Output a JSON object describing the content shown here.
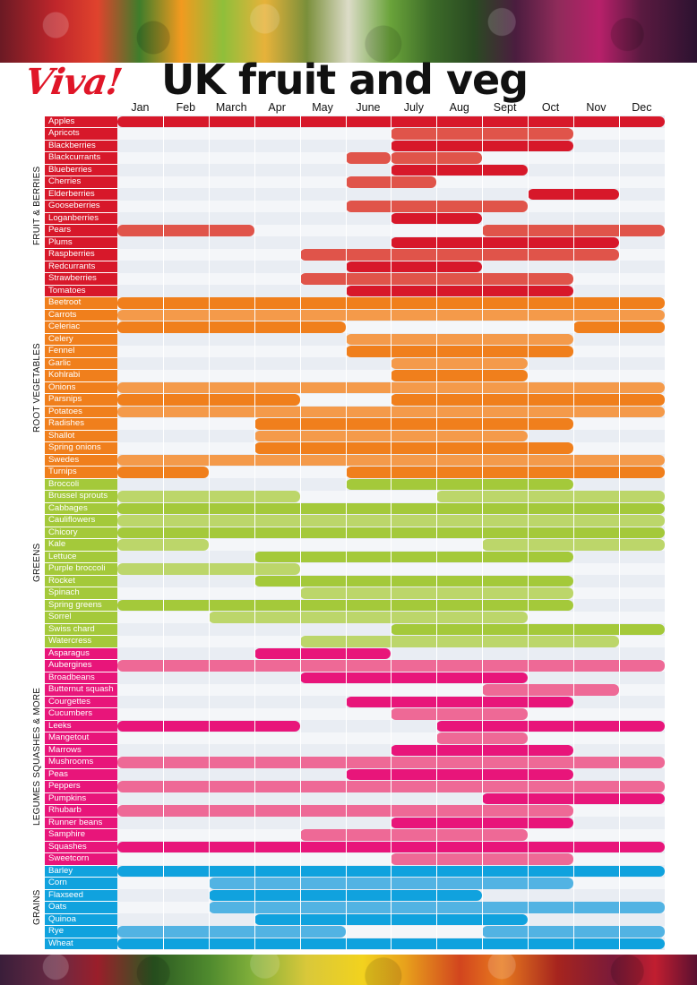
{
  "header": {
    "logo": "Viva!",
    "title": "UK fruit and veg"
  },
  "months": [
    "Jan",
    "Feb",
    "March",
    "Apr",
    "May",
    "June",
    "July",
    "Aug",
    "Sept",
    "Oct",
    "Nov",
    "Dec"
  ],
  "colors": {
    "fruit": "#d7182a",
    "fruit_light": "#e0544a",
    "root": "#f07f1c",
    "root_light": "#f49a4a",
    "greens": "#a4c93a",
    "greens_light": "#bcd66a",
    "legumes": "#e8157a",
    "legumes_light": "#ee6996",
    "grains": "#10a2de",
    "grains_light": "#52b3e3",
    "row_bg_a": "#e9edf3",
    "row_bg_b": "#f4f6f9"
  },
  "sections": [
    {
      "name": "FRUIT & BERRIES",
      "key": "fruit",
      "items": [
        {
          "label": "Apples",
          "spans": [
            [
              1,
              12,
              "d"
            ]
          ]
        },
        {
          "label": "Apricots",
          "spans": [
            [
              7,
              10,
              "l"
            ]
          ]
        },
        {
          "label": "Blackberries",
          "spans": [
            [
              7,
              10,
              "d"
            ]
          ]
        },
        {
          "label": "Blackcurrants",
          "spans": [
            [
              6,
              6,
              "l"
            ],
            [
              7,
              8,
              "l"
            ]
          ]
        },
        {
          "label": "Blueberries",
          "spans": [
            [
              7,
              9,
              "d"
            ]
          ]
        },
        {
          "label": "Cherries",
          "spans": [
            [
              6,
              7,
              "l"
            ]
          ]
        },
        {
          "label": "Elderberries",
          "spans": [
            [
              10,
              11,
              "d"
            ]
          ]
        },
        {
          "label": "Gooseberries",
          "spans": [
            [
              6,
              9,
              "l"
            ]
          ]
        },
        {
          "label": "Loganberries",
          "spans": [
            [
              7,
              8,
              "d"
            ]
          ]
        },
        {
          "label": "Pears",
          "spans": [
            [
              1,
              3,
              "l"
            ],
            [
              9,
              12,
              "l"
            ]
          ]
        },
        {
          "label": "Plums",
          "spans": [
            [
              7,
              11,
              "d"
            ]
          ]
        },
        {
          "label": "Raspberries",
          "spans": [
            [
              5,
              11,
              "l"
            ]
          ]
        },
        {
          "label": "Redcurrants",
          "spans": [
            [
              6,
              8,
              "d"
            ]
          ]
        },
        {
          "label": "Strawberries",
          "spans": [
            [
              5,
              10,
              "l"
            ]
          ]
        },
        {
          "label": "Tomatoes",
          "spans": [
            [
              6,
              10,
              "d"
            ]
          ]
        }
      ]
    },
    {
      "name": "ROOT VEGETABLES",
      "key": "root",
      "items": [
        {
          "label": "Beetroot",
          "spans": [
            [
              1,
              12,
              "d"
            ]
          ]
        },
        {
          "label": "Carrots",
          "spans": [
            [
              1,
              12,
              "l"
            ]
          ]
        },
        {
          "label": "Celeriac",
          "spans": [
            [
              1,
              5,
              "d"
            ],
            [
              11,
              12,
              "d"
            ]
          ]
        },
        {
          "label": "Celery",
          "spans": [
            [
              6,
              10,
              "l"
            ]
          ]
        },
        {
          "label": "Fennel",
          "spans": [
            [
              6,
              10,
              "d"
            ]
          ]
        },
        {
          "label": "Garlic",
          "spans": [
            [
              7,
              9,
              "l"
            ]
          ]
        },
        {
          "label": "Kohlrabi",
          "spans": [
            [
              7,
              9,
              "d"
            ]
          ]
        },
        {
          "label": "Onions",
          "spans": [
            [
              1,
              12,
              "l"
            ]
          ]
        },
        {
          "label": "Parsnips",
          "spans": [
            [
              1,
              4,
              "d"
            ],
            [
              7,
              12,
              "d"
            ]
          ]
        },
        {
          "label": "Potatoes",
          "spans": [
            [
              1,
              12,
              "l"
            ]
          ]
        },
        {
          "label": "Radishes",
          "spans": [
            [
              4,
              10,
              "d"
            ]
          ]
        },
        {
          "label": "Shallot",
          "spans": [
            [
              4,
              9,
              "l"
            ]
          ]
        },
        {
          "label": "Spring onions",
          "spans": [
            [
              4,
              10,
              "d"
            ]
          ]
        },
        {
          "label": "Swedes",
          "spans": [
            [
              1,
              12,
              "l"
            ]
          ]
        },
        {
          "label": "Turnips",
          "spans": [
            [
              1,
              2,
              "d"
            ],
            [
              6,
              12,
              "d"
            ]
          ]
        }
      ]
    },
    {
      "name": "GREENS",
      "key": "greens",
      "items": [
        {
          "label": "Broccoli",
          "spans": [
            [
              6,
              10,
              "d"
            ]
          ]
        },
        {
          "label": "Brussel sprouts",
          "spans": [
            [
              1,
              4,
              "l"
            ],
            [
              8,
              12,
              "l"
            ]
          ]
        },
        {
          "label": "Cabbages",
          "spans": [
            [
              1,
              12,
              "d"
            ]
          ]
        },
        {
          "label": "Cauliflowers",
          "spans": [
            [
              1,
              12,
              "l"
            ]
          ]
        },
        {
          "label": "Chicory",
          "spans": [
            [
              1,
              12,
              "d"
            ]
          ]
        },
        {
          "label": "Kale",
          "spans": [
            [
              1,
              2,
              "l"
            ],
            [
              9,
              12,
              "l"
            ]
          ]
        },
        {
          "label": "Lettuce",
          "spans": [
            [
              4,
              10,
              "d"
            ]
          ]
        },
        {
          "label": "Purple broccoli",
          "spans": [
            [
              1,
              4,
              "l"
            ]
          ]
        },
        {
          "label": "Rocket",
          "spans": [
            [
              4,
              10,
              "d"
            ]
          ]
        },
        {
          "label": "Spinach",
          "spans": [
            [
              5,
              10,
              "l"
            ]
          ]
        },
        {
          "label": "Spring greens",
          "spans": [
            [
              1,
              10,
              "d"
            ]
          ]
        },
        {
          "label": "Sorrel",
          "spans": [
            [
              3,
              9,
              "l"
            ]
          ]
        },
        {
          "label": "Swiss chard",
          "spans": [
            [
              7,
              12,
              "d"
            ]
          ]
        },
        {
          "label": "Watercress",
          "spans": [
            [
              5,
              11,
              "l"
            ]
          ]
        }
      ]
    },
    {
      "name": "LEGUMES SQUASHES & MORE",
      "key": "legumes",
      "items": [
        {
          "label": "Asparagus",
          "spans": [
            [
              4,
              6,
              "d"
            ]
          ]
        },
        {
          "label": "Aubergines",
          "spans": [
            [
              1,
              12,
              "l"
            ]
          ]
        },
        {
          "label": "Broadbeans",
          "spans": [
            [
              5,
              9,
              "d"
            ]
          ]
        },
        {
          "label": "Butternut squash",
          "spans": [
            [
              9,
              11,
              "l"
            ]
          ]
        },
        {
          "label": "Courgettes",
          "spans": [
            [
              6,
              10,
              "d"
            ]
          ]
        },
        {
          "label": "Cucumbers",
          "spans": [
            [
              7,
              9,
              "l"
            ]
          ]
        },
        {
          "label": "Leeks",
          "spans": [
            [
              1,
              4,
              "d"
            ],
            [
              8,
              12,
              "d"
            ]
          ]
        },
        {
          "label": "Mangetout",
          "spans": [
            [
              8,
              9,
              "l"
            ]
          ]
        },
        {
          "label": "Marrows",
          "spans": [
            [
              7,
              10,
              "d"
            ]
          ]
        },
        {
          "label": "Mushrooms",
          "spans": [
            [
              1,
              12,
              "l"
            ]
          ]
        },
        {
          "label": "Peas",
          "spans": [
            [
              6,
              10,
              "d"
            ]
          ]
        },
        {
          "label": "Peppers",
          "spans": [
            [
              1,
              12,
              "l"
            ]
          ]
        },
        {
          "label": "Pumpkins",
          "spans": [
            [
              9,
              12,
              "d"
            ]
          ]
        },
        {
          "label": "Rhubarb",
          "spans": [
            [
              1,
              10,
              "l"
            ]
          ]
        },
        {
          "label": "Runner beans",
          "spans": [
            [
              7,
              10,
              "d"
            ]
          ]
        },
        {
          "label": "Samphire",
          "spans": [
            [
              5,
              9,
              "l"
            ]
          ]
        },
        {
          "label": "Squashes",
          "spans": [
            [
              1,
              12,
              "d"
            ]
          ]
        },
        {
          "label": "Sweetcorn",
          "spans": [
            [
              7,
              10,
              "l"
            ]
          ]
        }
      ]
    },
    {
      "name": "GRAINS",
      "key": "grains",
      "items": [
        {
          "label": "Barley",
          "spans": [
            [
              1,
              12,
              "d"
            ]
          ]
        },
        {
          "label": "Corn",
          "spans": [
            [
              3,
              10,
              "l"
            ]
          ]
        },
        {
          "label": "Flaxseed",
          "spans": [
            [
              3,
              8,
              "d"
            ]
          ]
        },
        {
          "label": "Oats",
          "spans": [
            [
              3,
              12,
              "l"
            ]
          ]
        },
        {
          "label": "Quinoa",
          "spans": [
            [
              4,
              9,
              "d"
            ]
          ]
        },
        {
          "label": "Rye",
          "spans": [
            [
              1,
              5,
              "l"
            ],
            [
              9,
              12,
              "l"
            ]
          ]
        },
        {
          "label": "Wheat",
          "spans": [
            [
              1,
              12,
              "d"
            ]
          ]
        }
      ]
    }
  ]
}
